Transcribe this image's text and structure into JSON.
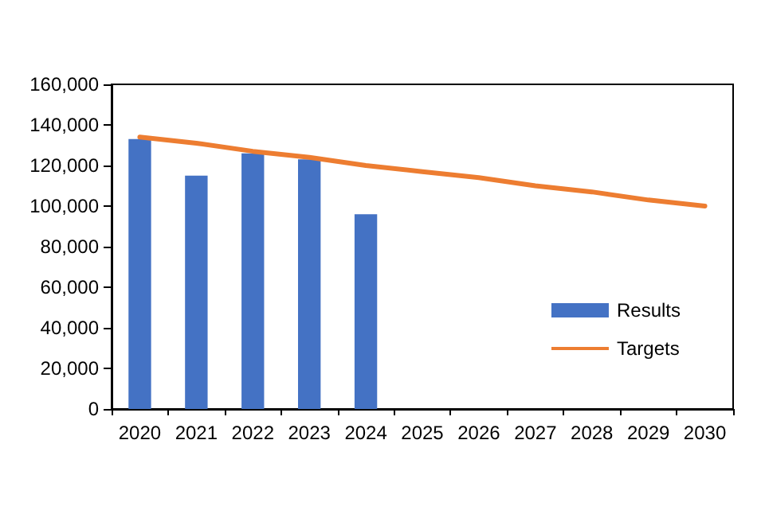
{
  "chart_data": {
    "type": "bar",
    "categories": [
      "2020",
      "2021",
      "2022",
      "2023",
      "2024",
      "2025",
      "2026",
      "2027",
      "2028",
      "2029",
      "2030"
    ],
    "series": [
      {
        "name": "Results",
        "color": "#4472c4",
        "values": [
          133000,
          115000,
          126000,
          123000,
          96000,
          null,
          null,
          null,
          null,
          null,
          null
        ]
      },
      {
        "name": "Targets",
        "type": "line",
        "color": "#ed7d31",
        "values": [
          134000,
          131000,
          127000,
          124000,
          120000,
          117000,
          114000,
          110000,
          107000,
          103000,
          100000
        ]
      }
    ],
    "ylim": [
      0,
      160000
    ],
    "yticks": [
      {
        "value": 0,
        "label": "0"
      },
      {
        "value": 20000,
        "label": "20,000"
      },
      {
        "value": 40000,
        "label": "40,000"
      },
      {
        "value": 60000,
        "label": "60,000"
      },
      {
        "value": 80000,
        "label": "80,000"
      },
      {
        "value": 100000,
        "label": "100,000"
      },
      {
        "value": 120000,
        "label": "120,000"
      },
      {
        "value": 140000,
        "label": "140,000"
      },
      {
        "value": 160000,
        "label": "160,000"
      }
    ],
    "grid": false,
    "legend": "bottom right",
    "marker": "none"
  }
}
